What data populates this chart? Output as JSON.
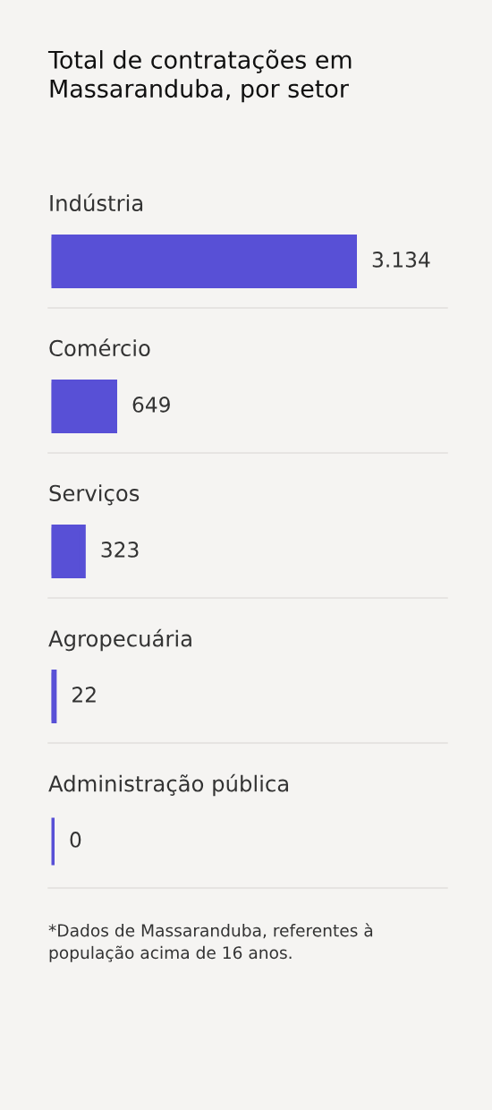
{
  "chart_data": {
    "type": "bar",
    "orientation": "horizontal",
    "title": "Total de contratações em\nMassaranduba, por setor",
    "categories": [
      "Indústria",
      "Comércio",
      "Serviços",
      "Agropecuária",
      "Administração pública"
    ],
    "values": [
      3134,
      649,
      323,
      22,
      0
    ],
    "color": "#5850d6",
    "value_labels": [
      "3.134",
      "649",
      "323",
      "22",
      "0"
    ],
    "annotations": [
      "*Dados de Massaranduba, referentes à\npopulação acima de 16 anos."
    ]
  }
}
